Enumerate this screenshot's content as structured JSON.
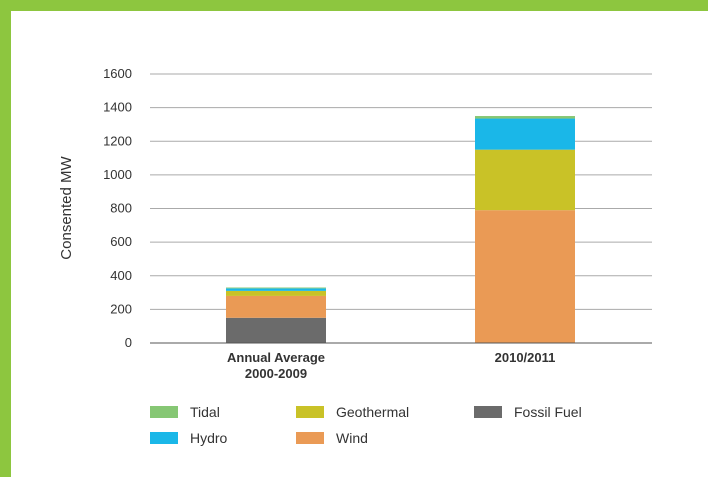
{
  "colors": {
    "Tidal": "#86c774",
    "Hydro": "#1ab7e8",
    "Geothermal": "#c9c227",
    "Wind": "#ea9a55",
    "Fossil Fuel": "#6b6b6b",
    "frame": "#8dc63f",
    "grid": "#aaaaaa",
    "axis": "#555555"
  },
  "chart_data": {
    "type": "bar",
    "stacked": true,
    "title": "",
    "xlabel": "",
    "ylabel": "Consented MW",
    "ylim": [
      0,
      1600
    ],
    "yticks": [
      0,
      200,
      400,
      600,
      800,
      1000,
      1200,
      1400,
      1600
    ],
    "grid": true,
    "categories": [
      [
        "Annual Average",
        "2000-2009"
      ],
      [
        "2010/2011"
      ]
    ],
    "series": [
      {
        "name": "Fossil Fuel",
        "values": [
          150,
          0
        ]
      },
      {
        "name": "Wind",
        "values": [
          130,
          790
        ]
      },
      {
        "name": "Geothermal",
        "values": [
          30,
          360
        ]
      },
      {
        "name": "Hydro",
        "values": [
          15,
          185
        ]
      },
      {
        "name": "Tidal",
        "values": [
          5,
          15
        ]
      }
    ],
    "legend": {
      "position": "bottom",
      "entries": [
        "Tidal",
        "Geothermal",
        "Fossil Fuel",
        "Hydro",
        "Wind"
      ]
    }
  }
}
